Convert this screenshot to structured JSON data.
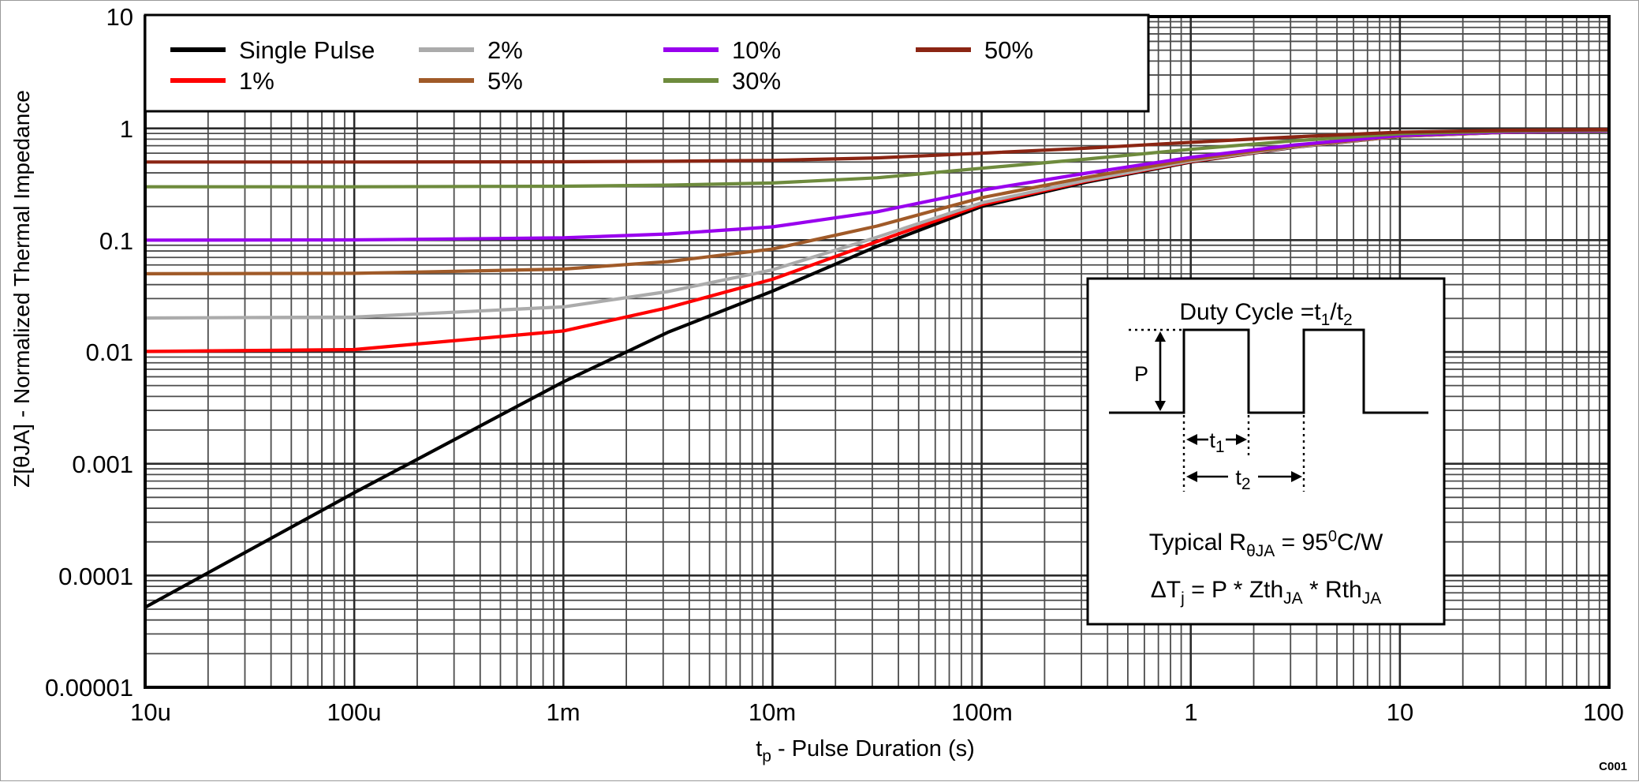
{
  "page": {
    "code": "C001",
    "background": "#ffffff"
  },
  "axes": {
    "x": {
      "label_parts": [
        "t",
        "p",
        " - Pulse Duration (s)"
      ],
      "ticks": [
        "10u",
        "100u",
        "1m",
        "10m",
        "100m",
        "1",
        "10",
        "100"
      ]
    },
    "y": {
      "label": "Z[θJA] - Normalized Thermal Impedance",
      "ticks": [
        "10",
        "1",
        "0.1",
        "0.01",
        "0.001",
        "0.0001",
        "0.00001"
      ]
    }
  },
  "legend": {
    "items": [
      {
        "label": "Single Pulse",
        "color": "#000000"
      },
      {
        "label": "1%",
        "color": "#FF0000"
      },
      {
        "label": "2%",
        "color": "#ABABAB"
      },
      {
        "label": "5%",
        "color": "#A05A28"
      },
      {
        "label": "10%",
        "color": "#9900EE"
      },
      {
        "label": "30%",
        "color": "#6E8B3D"
      },
      {
        "label": "50%",
        "color": "#8B2513"
      }
    ]
  },
  "inset": {
    "title_parts": [
      "Duty Cycle =t",
      "1",
      "/t",
      "2"
    ],
    "p_label": "P",
    "t1_parts": [
      "t",
      "1"
    ],
    "t2_parts": [
      "t",
      "2"
    ],
    "line1_parts": [
      "Typical R",
      "θJA",
      " = 95",
      "0",
      "C/W"
    ],
    "line2_parts": [
      "ΔT",
      "j",
      " = P * Zth",
      "JA",
      " * Rth",
      "JA"
    ]
  },
  "chart_data": {
    "type": "line",
    "log_x": true,
    "log_y": true,
    "xlim": [
      1e-05,
      100
    ],
    "ylim": [
      1e-05,
      10
    ],
    "xlabel": "tp - Pulse Duration (s)",
    "ylabel": "Z[θJA] - Normalized Thermal Impedance",
    "grid": "log-log, major and minor gridlines on",
    "legend_position": "top-left",
    "annotation": "Duty Cycle = t1/t2; Typical RθJA = 95°C/W; ΔTj = P * ZthJA * RthJA",
    "series": [
      {
        "name": "Single Pulse",
        "duty_cycle": 0,
        "color": "#000000",
        "points": [
          [
            1e-05,
            5.2e-05
          ],
          [
            0.0001,
            0.00055
          ],
          [
            0.001,
            0.0054
          ],
          [
            0.00316,
            0.015
          ],
          [
            0.01,
            0.035
          ],
          [
            0.0316,
            0.088
          ],
          [
            0.1,
            0.2
          ],
          [
            0.316,
            0.33
          ],
          [
            1,
            0.5
          ],
          [
            3.16,
            0.68
          ],
          [
            10,
            0.85
          ],
          [
            31.6,
            0.92
          ],
          [
            100,
            0.95
          ]
        ]
      },
      {
        "name": "1%",
        "duty_cycle": 0.01,
        "color": "#FF0000",
        "points": [
          [
            1e-05,
            0.0101
          ],
          [
            0.0001,
            0.0105
          ],
          [
            0.001,
            0.0154
          ],
          [
            0.00316,
            0.0249
          ],
          [
            0.01,
            0.0447
          ],
          [
            0.0316,
            0.0971
          ],
          [
            0.1,
            0.208
          ],
          [
            0.316,
            0.337
          ],
          [
            1,
            0.505
          ],
          [
            3.16,
            0.683
          ],
          [
            10,
            0.852
          ],
          [
            31.6,
            0.921
          ],
          [
            100,
            0.951
          ]
        ]
      },
      {
        "name": "2%",
        "duty_cycle": 0.02,
        "color": "#ABABAB",
        "points": [
          [
            1e-05,
            0.0201
          ],
          [
            0.0001,
            0.0205
          ],
          [
            0.001,
            0.0253
          ],
          [
            0.00316,
            0.0347
          ],
          [
            0.01,
            0.0543
          ],
          [
            0.0316,
            0.1062
          ],
          [
            0.1,
            0.216
          ],
          [
            0.316,
            0.343
          ],
          [
            1,
            0.51
          ],
          [
            3.16,
            0.686
          ],
          [
            10,
            0.853
          ],
          [
            31.6,
            0.922
          ],
          [
            100,
            0.951
          ]
        ]
      },
      {
        "name": "5%",
        "duty_cycle": 0.05,
        "color": "#A05A28",
        "points": [
          [
            1e-05,
            0.0501
          ],
          [
            0.0001,
            0.0505
          ],
          [
            0.001,
            0.0551
          ],
          [
            0.00316,
            0.0643
          ],
          [
            0.01,
            0.0833
          ],
          [
            0.0316,
            0.1336
          ],
          [
            0.1,
            0.24
          ],
          [
            0.316,
            0.364
          ],
          [
            1,
            0.525
          ],
          [
            3.16,
            0.696
          ],
          [
            10,
            0.858
          ],
          [
            31.6,
            0.924
          ],
          [
            100,
            0.953
          ]
        ]
      },
      {
        "name": "10%",
        "duty_cycle": 0.1,
        "color": "#9900EE",
        "points": [
          [
            1e-05,
            0.1001
          ],
          [
            0.0001,
            0.1005
          ],
          [
            0.001,
            0.1049
          ],
          [
            0.00316,
            0.1135
          ],
          [
            0.01,
            0.1315
          ],
          [
            0.0316,
            0.1792
          ],
          [
            0.1,
            0.28
          ],
          [
            0.316,
            0.397
          ],
          [
            1,
            0.55
          ],
          [
            3.16,
            0.712
          ],
          [
            10,
            0.865
          ],
          [
            31.6,
            0.928
          ],
          [
            100,
            0.955
          ]
        ]
      },
      {
        "name": "30%",
        "duty_cycle": 0.3,
        "color": "#6E8B3D",
        "points": [
          [
            1e-05,
            0.3
          ],
          [
            0.0001,
            0.3004
          ],
          [
            0.001,
            0.3038
          ],
          [
            0.00316,
            0.3105
          ],
          [
            0.01,
            0.3245
          ],
          [
            0.0316,
            0.3616
          ],
          [
            0.1,
            0.44
          ],
          [
            0.316,
            0.531
          ],
          [
            1,
            0.65
          ],
          [
            3.16,
            0.776
          ],
          [
            10,
            0.895
          ],
          [
            31.6,
            0.944
          ],
          [
            100,
            0.965
          ]
        ]
      },
      {
        "name": "50%",
        "duty_cycle": 0.5,
        "color": "#8B2513",
        "points": [
          [
            1e-05,
            0.5
          ],
          [
            0.0001,
            0.5003
          ],
          [
            0.001,
            0.5027
          ],
          [
            0.00316,
            0.5075
          ],
          [
            0.01,
            0.5175
          ],
          [
            0.0316,
            0.544
          ],
          [
            0.1,
            0.6
          ],
          [
            0.316,
            0.665
          ],
          [
            1,
            0.75
          ],
          [
            3.16,
            0.84
          ],
          [
            10,
            0.925
          ],
          [
            31.6,
            0.96
          ],
          [
            100,
            0.975
          ]
        ]
      }
    ]
  }
}
